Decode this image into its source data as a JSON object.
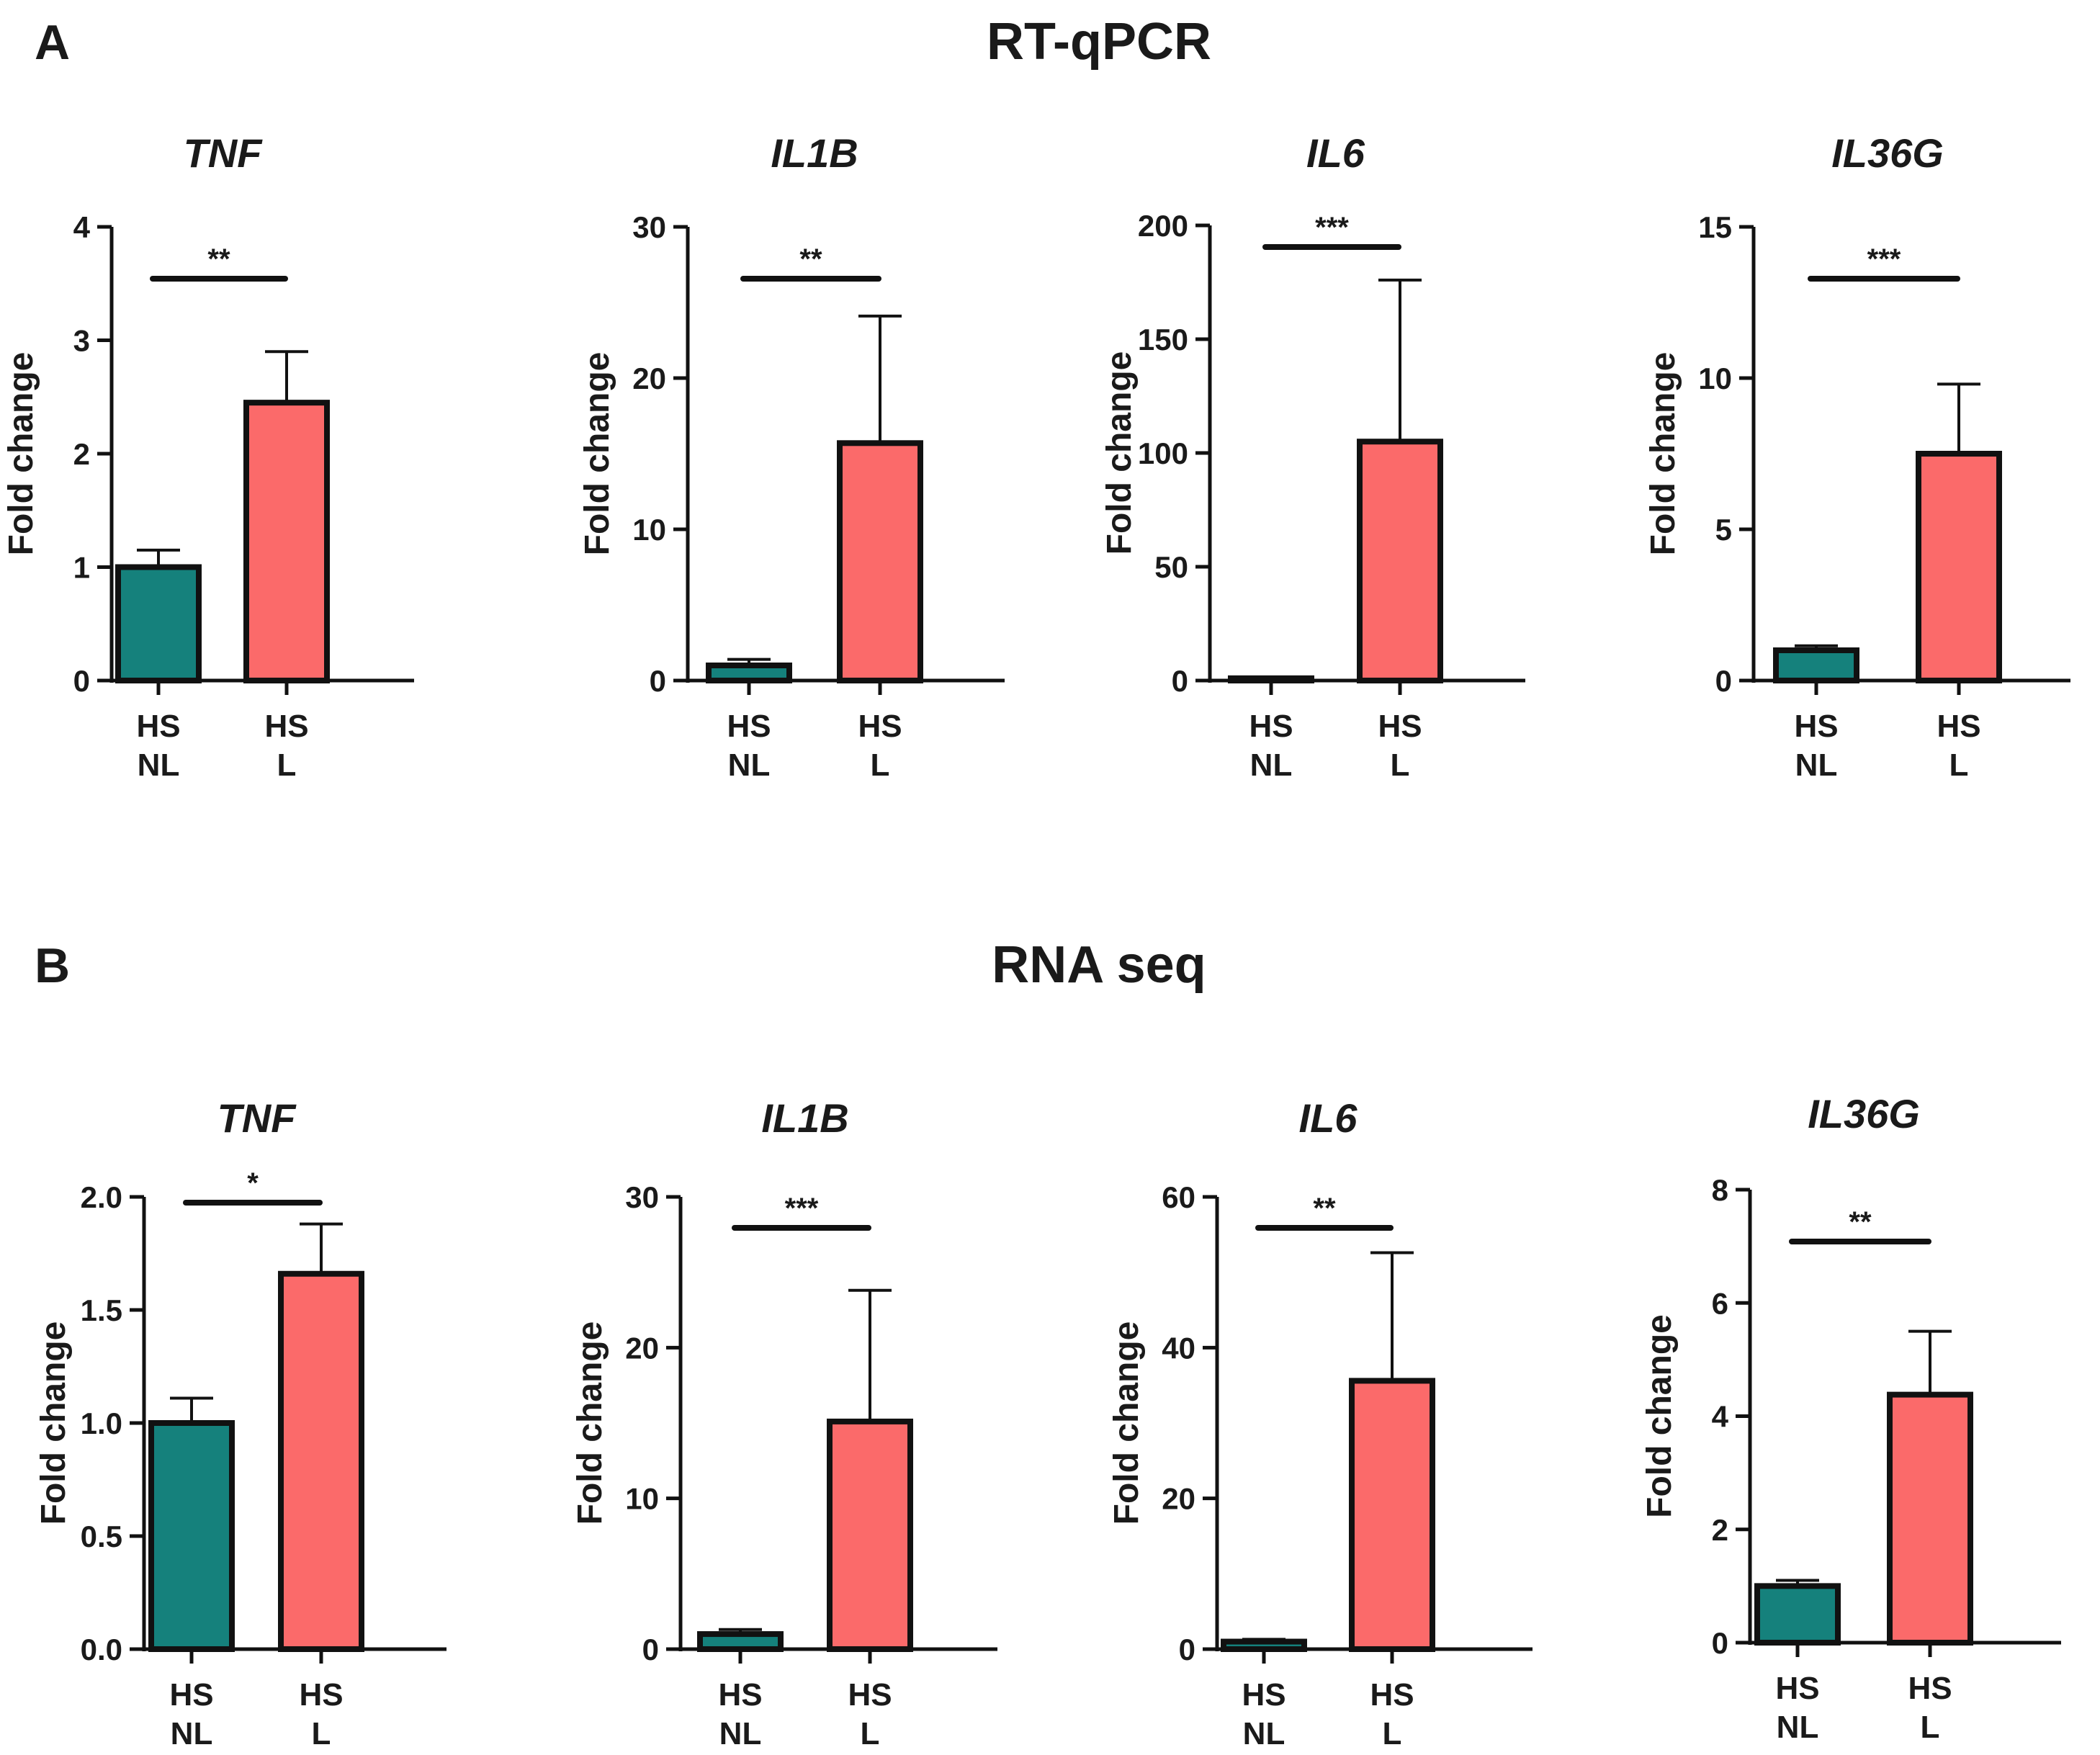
{
  "sections": [
    {
      "letter": "A",
      "title": "RT-qPCR"
    },
    {
      "letter": "B",
      "title": "RNA seq"
    }
  ],
  "colors": {
    "NL": "#15817c",
    "L": "#fb6a6a",
    "stroke": "#111111"
  },
  "chart_data": [
    {
      "type": "bar",
      "section": "A",
      "title": "TNF",
      "ylabel": "Fold change",
      "categories": [
        [
          "HS",
          "NL"
        ],
        [
          "HS",
          "L"
        ]
      ],
      "values": [
        1.0,
        2.45
      ],
      "errors": [
        0.15,
        0.45
      ],
      "ylim": [
        0,
        4
      ],
      "yticks": [
        "0",
        "1",
        "2",
        "3",
        "4"
      ],
      "yticks_values": [
        0,
        1,
        2,
        3,
        4
      ],
      "significance": "**",
      "grid": false,
      "legend": "none"
    },
    {
      "type": "bar",
      "section": "A",
      "title": "IL1B",
      "ylabel": "Fold change",
      "categories": [
        [
          "HS",
          "NL"
        ],
        [
          "HS",
          "L"
        ]
      ],
      "values": [
        1.0,
        15.7
      ],
      "errors": [
        0.4,
        8.4
      ],
      "ylim": [
        0,
        30
      ],
      "yticks": [
        "0",
        "10",
        "20",
        "30"
      ],
      "yticks_values": [
        0,
        10,
        20,
        30
      ],
      "significance": "**",
      "grid": false,
      "legend": "none"
    },
    {
      "type": "bar",
      "section": "A",
      "title": "IL6",
      "ylabel": "Fold change",
      "categories": [
        [
          "HS",
          "NL"
        ],
        [
          "HS",
          "L"
        ]
      ],
      "values": [
        1.0,
        105
      ],
      "errors": [
        0.3,
        71
      ],
      "ylim": [
        0,
        200
      ],
      "yticks": [
        "0",
        "50",
        "100",
        "150",
        "200"
      ],
      "yticks_values": [
        0,
        50,
        100,
        150,
        200
      ],
      "significance": "***",
      "grid": false,
      "legend": "none"
    },
    {
      "type": "bar",
      "section": "A",
      "title": "IL36G",
      "ylabel": "Fold change",
      "categories": [
        [
          "HS",
          "NL"
        ],
        [
          "HS",
          "L"
        ]
      ],
      "values": [
        1.0,
        7.5
      ],
      "errors": [
        0.15,
        2.3
      ],
      "ylim": [
        0,
        15
      ],
      "yticks": [
        "0",
        "5",
        "10",
        "15"
      ],
      "yticks_values": [
        0,
        5,
        10,
        15
      ],
      "significance": "***",
      "grid": false,
      "legend": "none"
    },
    {
      "type": "bar",
      "section": "B",
      "title": "TNF",
      "ylabel": "Fold change",
      "categories": [
        [
          "HS",
          "NL"
        ],
        [
          "HS",
          "L"
        ]
      ],
      "values": [
        1.0,
        1.66
      ],
      "errors": [
        0.11,
        0.22
      ],
      "ylim": [
        0,
        2.0
      ],
      "yticks": [
        "0.0",
        "0.5",
        "1.0",
        "1.5",
        "2.0"
      ],
      "yticks_values": [
        0,
        0.5,
        1.0,
        1.5,
        2.0
      ],
      "significance": "*",
      "grid": false,
      "legend": "none"
    },
    {
      "type": "bar",
      "section": "B",
      "title": "IL1B",
      "ylabel": "Fold change",
      "categories": [
        [
          "HS",
          "NL"
        ],
        [
          "HS",
          "L"
        ]
      ],
      "values": [
        1.0,
        15.1
      ],
      "errors": [
        0.3,
        8.7
      ],
      "ylim": [
        0,
        30
      ],
      "yticks": [
        "0",
        "10",
        "20",
        "30"
      ],
      "yticks_values": [
        0,
        10,
        20,
        30
      ],
      "significance": "***",
      "grid": false,
      "legend": "none"
    },
    {
      "type": "bar",
      "section": "B",
      "title": "IL6",
      "ylabel": "Fold change",
      "categories": [
        [
          "HS",
          "NL"
        ],
        [
          "HS",
          "L"
        ]
      ],
      "values": [
        1.0,
        35.6
      ],
      "errors": [
        0.3,
        17
      ],
      "ylim": [
        0,
        60
      ],
      "yticks": [
        "0",
        "20",
        "40",
        "60"
      ],
      "yticks_values": [
        0,
        20,
        40,
        60
      ],
      "significance": "**",
      "grid": false,
      "legend": "none"
    },
    {
      "type": "bar",
      "section": "B",
      "title": "IL36G",
      "ylabel": "Fold change",
      "categories": [
        [
          "HS",
          "NL"
        ],
        [
          "HS",
          "L"
        ]
      ],
      "values": [
        1.0,
        4.38
      ],
      "errors": [
        0.1,
        1.12
      ],
      "ylim": [
        0,
        8
      ],
      "yticks": [
        "0",
        "2",
        "4",
        "6",
        "8"
      ],
      "yticks_values": [
        0,
        2,
        4,
        6,
        8
      ],
      "significance": "**",
      "grid": false,
      "legend": "none"
    }
  ]
}
